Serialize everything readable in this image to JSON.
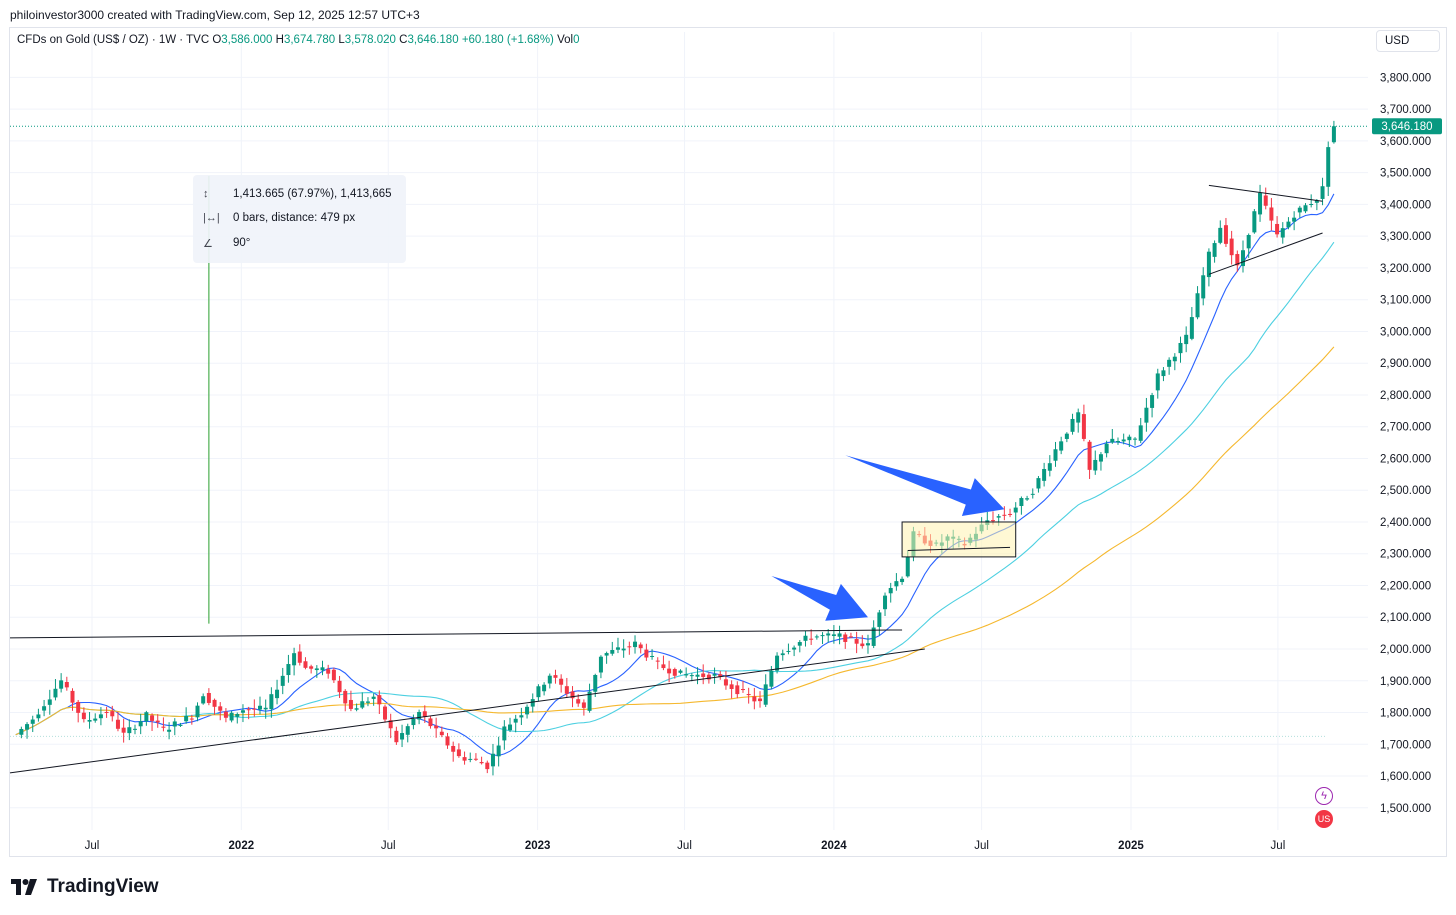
{
  "credit": "philoinvestor3000 created with TradingView.com, Sep 12, 2025 12:57 UTC+3",
  "legend": {
    "symbol": "CFDs on Gold (US$ / OZ) · 1W · TVC",
    "o_label": "O",
    "o": "3,586.000",
    "h_label": "H",
    "h": "3,674.780",
    "l_label": "L",
    "l": "3,578.020",
    "c_label": "C",
    "c": "3,646.180",
    "change": "+60.180 (+1.68%)",
    "vol_label": "Vol",
    "vol": "0"
  },
  "currency": "USD",
  "measure": {
    "price_range": "1,413.665 (67.97%), 1,413,665",
    "bars": "0 bars, distance: 479 px",
    "angle": "90°",
    "icons": [
      "price-range-icon",
      "bars-range-icon",
      "angle-icon"
    ]
  },
  "brand": "TradingView",
  "colors": {
    "up": "#089981",
    "down": "#f23645",
    "ma_fast": "#2962ff",
    "ma_mid": "#4dd0e1",
    "ma_slow": "#f5b82e",
    "arrow": "#2962ff",
    "highlight": "#fff3b0",
    "measure_line": "#4caf50"
  },
  "chart_data": {
    "type": "candlestick",
    "title": "CFDs on Gold (US$ / OZ) · 1W · TVC",
    "ylabel": "USD",
    "ylim": [
      1430,
      3880
    ],
    "y_ticks": [
      "1,500.000",
      "1,600.000",
      "1,700.000",
      "1,800.000",
      "1,900.000",
      "2,000.000",
      "2,100.000",
      "2,200.000",
      "2,300.000",
      "2,400.000",
      "2,500.000",
      "2,600.000",
      "2,700.000",
      "2,800.000",
      "2,900.000",
      "3,000.000",
      "3,100.000",
      "3,200.000",
      "3,300.000",
      "3,400.000",
      "3,500.000",
      "3,600.000",
      "3,700.000",
      "3,800.000"
    ],
    "y_tick_values": [
      1500,
      1600,
      1700,
      1800,
      1900,
      2000,
      2100,
      2200,
      2300,
      2400,
      2500,
      2600,
      2700,
      2800,
      2900,
      3000,
      3100,
      3200,
      3300,
      3400,
      3500,
      3600,
      3700,
      3800
    ],
    "x_ticks": [
      {
        "label": "Jul",
        "date": "2021-07-01",
        "bold": false
      },
      {
        "label": "2022",
        "date": "2022-01-01",
        "bold": true
      },
      {
        "label": "Jul",
        "date": "2022-07-01",
        "bold": false
      },
      {
        "label": "2023",
        "date": "2023-01-01",
        "bold": true
      },
      {
        "label": "Jul",
        "date": "2023-07-01",
        "bold": false
      },
      {
        "label": "2024",
        "date": "2024-01-01",
        "bold": true
      },
      {
        "label": "Jul",
        "date": "2024-07-01",
        "bold": false
      },
      {
        "label": "2025",
        "date": "2025-01-01",
        "bold": true
      },
      {
        "label": "Jul",
        "date": "2025-07-01",
        "bold": false
      }
    ],
    "x_range": [
      "2021-03-22",
      "2025-10-20"
    ],
    "last_price_label": "3,646.180",
    "last_price": 3646.18,
    "close_anchors": [
      [
        "2021-03-29",
        1730
      ],
      [
        "2021-04-19",
        1780
      ],
      [
        "2021-05-24",
        1900
      ],
      [
        "2021-06-21",
        1770
      ],
      [
        "2021-07-19",
        1805
      ],
      [
        "2021-08-09",
        1730
      ],
      [
        "2021-09-06",
        1790
      ],
      [
        "2021-09-27",
        1745
      ],
      [
        "2021-11-01",
        1790
      ],
      [
        "2021-11-15",
        1860
      ],
      [
        "2021-12-13",
        1780
      ],
      [
        "2022-01-03",
        1810
      ],
      [
        "2022-01-31",
        1810
      ],
      [
        "2022-03-07",
        1990
      ],
      [
        "2022-03-21",
        1940
      ],
      [
        "2022-04-18",
        1930
      ],
      [
        "2022-05-16",
        1810
      ],
      [
        "2022-06-13",
        1850
      ],
      [
        "2022-07-11",
        1710
      ],
      [
        "2022-08-08",
        1800
      ],
      [
        "2022-09-26",
        1660
      ],
      [
        "2022-10-17",
        1650
      ],
      [
        "2022-11-01",
        1630
      ],
      [
        "2022-11-21",
        1750
      ],
      [
        "2022-12-12",
        1800
      ],
      [
        "2023-01-16",
        1920
      ],
      [
        "2023-02-06",
        1865
      ],
      [
        "2023-02-27",
        1810
      ],
      [
        "2023-03-20",
        1980
      ],
      [
        "2023-05-01",
        2016
      ],
      [
        "2023-05-29",
        1950
      ],
      [
        "2023-06-26",
        1920
      ],
      [
        "2023-08-07",
        1915
      ],
      [
        "2023-08-21",
        1890
      ],
      [
        "2023-10-02",
        1830
      ],
      [
        "2023-10-23",
        1985
      ],
      [
        "2023-12-04",
        2040
      ],
      [
        "2024-01-08",
        2040
      ],
      [
        "2024-02-12",
        2010
      ],
      [
        "2024-03-04",
        2180
      ],
      [
        "2024-03-25",
        2230
      ],
      [
        "2024-04-08",
        2360
      ],
      [
        "2024-05-06",
        2325
      ],
      [
        "2024-05-20",
        2350
      ],
      [
        "2024-06-10",
        2330
      ],
      [
        "2024-07-08",
        2405
      ],
      [
        "2024-08-05",
        2430
      ],
      [
        "2024-09-02",
        2500
      ],
      [
        "2024-10-07",
        2660
      ],
      [
        "2024-10-28",
        2740
      ],
      [
        "2024-11-11",
        2560
      ],
      [
        "2024-12-02",
        2650
      ],
      [
        "2025-01-06",
        2660
      ],
      [
        "2025-02-03",
        2860
      ],
      [
        "2025-03-10",
        2980
      ],
      [
        "2025-04-07",
        3240
      ],
      [
        "2025-04-21",
        3330
      ],
      [
        "2025-05-12",
        3200
      ],
      [
        "2025-06-09",
        3430
      ],
      [
        "2025-06-30",
        3300
      ],
      [
        "2025-07-21",
        3370
      ],
      [
        "2025-08-18",
        3420
      ],
      [
        "2025-08-25",
        3450
      ],
      [
        "2025-09-01",
        3590
      ],
      [
        "2025-09-08",
        3646.18
      ]
    ],
    "moving_averages": [
      {
        "key": "ma_fast",
        "color": "#2962ff",
        "period": 10
      },
      {
        "key": "ma_mid",
        "color": "#4dd0e1",
        "period": 30
      },
      {
        "key": "ma_slow",
        "color": "#f5b82e",
        "period": 60
      }
    ],
    "annotations": {
      "trend_lines": [
        {
          "from": [
            "2021-03-22",
            2035
          ],
          "to": [
            "2024-03-25",
            2060
          ]
        },
        {
          "from": [
            "2021-03-22",
            1610
          ],
          "to": [
            "2024-04-22",
            2000
          ]
        },
        {
          "from": [
            "2024-04-01",
            2310
          ],
          "to": [
            "2024-08-05",
            2320
          ]
        },
        {
          "from": [
            "2025-04-07",
            3460
          ],
          "to": [
            "2025-08-25",
            3410
          ]
        },
        {
          "from": [
            "2025-04-07",
            3180
          ],
          "to": [
            "2025-08-25",
            3310
          ]
        }
      ],
      "highlight_box": {
        "from": [
          "2024-03-25",
          2400
        ],
        "to": [
          "2024-08-12",
          2290
        ]
      },
      "measure_line": {
        "date": "2021-11-22",
        "from": 2080,
        "to": 3490
      },
      "dashed_lines": [
        {
          "price": 3646.18
        },
        {
          "price": 1725
        }
      ],
      "arrows": [
        {
          "tail": [
            "2023-10-16",
            2230
          ],
          "head": [
            "2024-02-12",
            2100
          ]
        },
        {
          "tail": [
            "2024-01-15",
            2610
          ],
          "head": [
            "2024-07-29",
            2440
          ]
        }
      ]
    }
  }
}
